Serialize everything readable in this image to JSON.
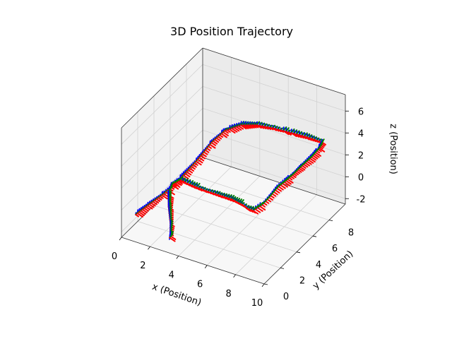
{
  "chart_data": {
    "type": "line",
    "title": "3D Position Trajectory",
    "xlabel": "x (Position)",
    "ylabel": "y (Position)",
    "zlabel": "z (Position)",
    "xlim": [
      0,
      10
    ],
    "ylim": [
      0,
      10
    ],
    "zlim": [
      -2.5,
      7.5
    ],
    "x_ticks": [
      "0",
      "2",
      "4",
      "6",
      "8",
      "10"
    ],
    "y_ticks": [
      "0",
      "2",
      "4",
      "6",
      "8"
    ],
    "z_ticks": [
      "-2",
      "0",
      "2",
      "4",
      "6"
    ],
    "grid": true,
    "legend": "none",
    "trajectory_color": "#0000ff",
    "frame_axis_colors": [
      "#ff0000",
      "#008000",
      "#0000ff"
    ],
    "series": [
      {
        "points": [
          [
            1.0,
            0.0,
            0.0
          ],
          [
            1.2,
            1.1,
            0.1
          ],
          [
            1.6,
            2.4,
            0.4
          ],
          [
            2.0,
            3.5,
            1.0
          ],
          [
            2.5,
            4.8,
            2.0
          ],
          [
            3.0,
            5.8,
            3.2
          ],
          [
            3.6,
            6.4,
            4.1
          ],
          [
            4.5,
            6.8,
            4.7
          ],
          [
            5.5,
            7.0,
            5.0
          ],
          [
            6.5,
            7.2,
            5.0
          ],
          [
            7.5,
            7.4,
            4.9
          ],
          [
            8.5,
            7.6,
            4.8
          ],
          [
            9.6,
            7.8,
            4.6
          ],
          [
            9.8,
            7.0,
            4.6
          ],
          [
            9.8,
            6.0,
            4.5
          ],
          [
            9.7,
            5.0,
            4.4
          ],
          [
            9.7,
            4.0,
            4.4
          ],
          [
            9.6,
            3.2,
            4.3
          ],
          [
            9.4,
            2.6,
            4.1
          ],
          [
            9.2,
            2.0,
            3.6
          ],
          [
            9.0,
            1.5,
            3.2
          ],
          [
            8.6,
            1.1,
            2.8
          ],
          [
            8.2,
            1.0,
            2.9
          ],
          [
            7.9,
            1.0,
            3.1
          ],
          [
            7.0,
            1.2,
            3.1
          ],
          [
            6.0,
            1.3,
            3.0
          ],
          [
            5.0,
            1.3,
            3.0
          ],
          [
            4.0,
            1.4,
            3.0
          ],
          [
            3.3,
            1.4,
            3.1
          ],
          [
            2.8,
            1.2,
            2.6
          ],
          [
            2.7,
            1.0,
            2.0
          ],
          [
            2.9,
            0.7,
            1.0
          ],
          [
            3.2,
            0.4,
            -0.2
          ],
          [
            3.3,
            0.2,
            -0.9
          ],
          [
            3.3,
            0.1,
            -1.4
          ]
        ]
      }
    ]
  }
}
